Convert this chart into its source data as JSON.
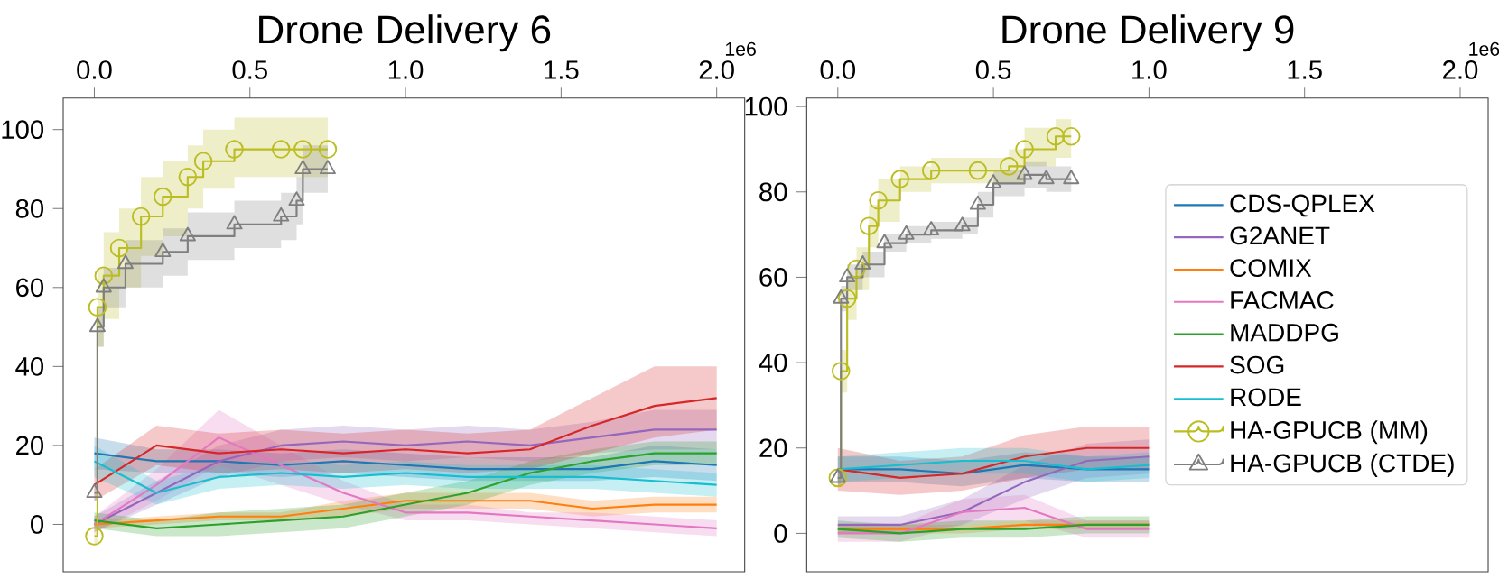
{
  "chart_data": [
    {
      "type": "line",
      "title": "Drone Delivery 6",
      "annotations": [
        "1e6"
      ],
      "xlim": [
        -0.1,
        2.09
      ],
      "ylim": [
        -12,
        108
      ],
      "xticks": [
        {
          "value": 0,
          "label": "0.0"
        },
        {
          "value": 0.5,
          "label": "0.5"
        },
        {
          "value": 1,
          "label": "1.0"
        },
        {
          "value": 1.5,
          "label": "1.5"
        },
        {
          "value": 2,
          "label": "2.0"
        }
      ],
      "yticks": [
        0,
        20,
        40,
        60,
        80,
        100
      ],
      "legend": false,
      "x": [
        0,
        0.2,
        0.4,
        0.6,
        0.8,
        1.0,
        1.2,
        1.4,
        1.6,
        1.8,
        2.0
      ],
      "series": [
        {
          "color": "#1f77b4",
          "marker": "none",
          "values": [
            18,
            16,
            16,
            15,
            16,
            15,
            14,
            14,
            14,
            16,
            15
          ],
          "lower": [
            14,
            13,
            13,
            12,
            13,
            12,
            11,
            11,
            11,
            12,
            11
          ],
          "upper": [
            22,
            19,
            19,
            18,
            19,
            18,
            17,
            17,
            17,
            20,
            19
          ]
        },
        {
          "color": "#9467bd",
          "marker": "none",
          "values": [
            0,
            8,
            16,
            20,
            21,
            20,
            21,
            20,
            22,
            24,
            24
          ],
          "lower": [
            -2,
            5,
            12,
            16,
            17,
            16,
            17,
            16,
            18,
            19,
            19
          ],
          "upper": [
            2,
            11,
            20,
            24,
            25,
            24,
            25,
            24,
            26,
            29,
            29
          ]
        },
        {
          "color": "#ff7f0e",
          "marker": "none",
          "values": [
            0,
            1,
            2,
            2,
            4,
            6,
            6,
            6,
            4,
            5,
            5
          ],
          "lower": [
            -1,
            0,
            1,
            1,
            2,
            4,
            4,
            4,
            2,
            3,
            3
          ],
          "upper": [
            1,
            2,
            3,
            3,
            6,
            8,
            8,
            8,
            6,
            7,
            7
          ]
        },
        {
          "color": "#e377c2",
          "marker": "none",
          "values": [
            0,
            10,
            22,
            15,
            8,
            3,
            3,
            2,
            1,
            0,
            -1
          ],
          "lower": [
            -2,
            6,
            15,
            10,
            5,
            1,
            1,
            0,
            -1,
            -2,
            -3
          ],
          "upper": [
            2,
            14,
            29,
            20,
            11,
            5,
            5,
            3,
            3,
            2,
            1
          ]
        },
        {
          "color": "#2ca02c",
          "marker": "none",
          "values": [
            1,
            -1,
            0,
            1,
            2,
            5,
            8,
            13,
            16,
            18,
            18
          ],
          "lower": [
            -1,
            -3,
            -3,
            -2,
            -1,
            2,
            5,
            10,
            13,
            15,
            15
          ],
          "upper": [
            3,
            1,
            3,
            4,
            5,
            8,
            11,
            16,
            19,
            21,
            21
          ]
        },
        {
          "color": "#d62728",
          "marker": "none",
          "values": [
            10,
            20,
            18,
            19,
            18,
            19,
            18,
            19,
            25,
            30,
            32
          ],
          "lower": [
            6,
            15,
            13,
            14,
            13,
            14,
            13,
            14,
            18,
            22,
            24
          ],
          "upper": [
            14,
            25,
            23,
            24,
            23,
            24,
            23,
            24,
            32,
            40,
            40
          ]
        },
        {
          "color": "#17becf",
          "marker": "none",
          "values": [
            16,
            8,
            12,
            13,
            12,
            13,
            12,
            12,
            12,
            11,
            10
          ],
          "lower": [
            12,
            5,
            9,
            10,
            9,
            10,
            9,
            9,
            9,
            8,
            7
          ],
          "upper": [
            20,
            11,
            15,
            16,
            15,
            16,
            15,
            15,
            15,
            14,
            13
          ]
        },
        {
          "color": "#bcbd22",
          "type": "step",
          "marker": "circle",
          "x": [
            0,
            0.01,
            0.03,
            0.08,
            0.15,
            0.22,
            0.3,
            0.35,
            0.45,
            0.6,
            0.67,
            0.75
          ],
          "values": [
            -3,
            55,
            63,
            70,
            78,
            83,
            88,
            92,
            95,
            95,
            95,
            95
          ],
          "lower": [
            -5,
            45,
            52,
            60,
            68,
            73,
            80,
            85,
            88,
            88,
            88,
            88
          ],
          "upper": [
            -1,
            65,
            74,
            80,
            88,
            92,
            96,
            100,
            103,
            103,
            103,
            103
          ]
        },
        {
          "color": "#7f7f7f",
          "type": "step",
          "marker": "triangle",
          "x": [
            0,
            0.01,
            0.03,
            0.1,
            0.22,
            0.3,
            0.45,
            0.6,
            0.65,
            0.67,
            0.75
          ],
          "values": [
            8,
            50,
            60,
            66,
            69,
            73,
            76,
            78,
            82,
            90,
            90
          ],
          "lower": [
            6,
            45,
            55,
            60,
            63,
            67,
            70,
            72,
            76,
            84,
            84
          ],
          "upper": [
            10,
            55,
            65,
            72,
            75,
            79,
            82,
            84,
            88,
            96,
            96
          ]
        }
      ]
    },
    {
      "type": "line",
      "title": "Drone Delivery 9",
      "annotations": [
        "1e6"
      ],
      "xlim": [
        -0.1,
        2.09
      ],
      "ylim": [
        -9,
        102
      ],
      "xticks": [
        {
          "value": 0,
          "label": "0.0"
        },
        {
          "value": 0.5,
          "label": "0.5"
        },
        {
          "value": 1,
          "label": "1.0"
        },
        {
          "value": 1.5,
          "label": "1.5"
        },
        {
          "value": 2,
          "label": "2.0"
        }
      ],
      "yticks": [
        0,
        20,
        40,
        60,
        80,
        100
      ],
      "legend": "right",
      "x": [
        0,
        0.2,
        0.4,
        0.6,
        0.8,
        1.0
      ],
      "series": [
        {
          "name": "CDS-QPLEX",
          "color": "#1f77b4",
          "marker": "none",
          "values": [
            15,
            15,
            14,
            16,
            15,
            15
          ],
          "lower": [
            12,
            12,
            11,
            13,
            12,
            12
          ],
          "upper": [
            18,
            18,
            17,
            19,
            18,
            18
          ]
        },
        {
          "name": "G2ANET",
          "color": "#9467bd",
          "marker": "none",
          "values": [
            2,
            2,
            5,
            12,
            17,
            18
          ],
          "lower": [
            0,
            0,
            2,
            8,
            13,
            14
          ],
          "upper": [
            4,
            4,
            8,
            16,
            21,
            22
          ]
        },
        {
          "name": "COMIX",
          "color": "#ff7f0e",
          "marker": "none",
          "values": [
            1,
            1,
            1,
            2,
            2,
            2
          ],
          "lower": [
            0,
            0,
            0,
            1,
            1,
            1
          ],
          "upper": [
            2,
            2,
            2,
            3,
            3,
            3
          ]
        },
        {
          "name": "FACMAC",
          "color": "#e377c2",
          "marker": "none",
          "values": [
            0,
            0,
            5,
            6,
            1,
            1
          ],
          "lower": [
            -2,
            -2,
            2,
            3,
            -1,
            -1
          ],
          "upper": [
            2,
            2,
            8,
            9,
            3,
            3
          ]
        },
        {
          "name": "MADDPG",
          "color": "#2ca02c",
          "marker": "none",
          "values": [
            1,
            0,
            1,
            1,
            2,
            2
          ],
          "lower": [
            -1,
            -2,
            -1,
            -1,
            0,
            0
          ],
          "upper": [
            3,
            2,
            3,
            3,
            4,
            4
          ]
        },
        {
          "name": "SOG",
          "color": "#d62728",
          "marker": "none",
          "values": [
            15,
            13,
            14,
            18,
            20,
            20
          ],
          "lower": [
            10,
            9,
            10,
            13,
            15,
            15
          ],
          "upper": [
            20,
            17,
            18,
            23,
            25,
            25
          ]
        },
        {
          "name": "RODE",
          "color": "#17becf",
          "marker": "none",
          "values": [
            15,
            16,
            17,
            17,
            15,
            16
          ],
          "lower": [
            12,
            13,
            14,
            14,
            12,
            13
          ],
          "upper": [
            18,
            19,
            20,
            20,
            18,
            19
          ]
        },
        {
          "name": "HA-GPUCB (MM)",
          "color": "#bcbd22",
          "type": "step",
          "marker": "circle",
          "x": [
            0,
            0.01,
            0.03,
            0.06,
            0.1,
            0.13,
            0.2,
            0.3,
            0.45,
            0.55,
            0.6,
            0.7,
            0.75
          ],
          "values": [
            13,
            38,
            55,
            62,
            72,
            78,
            83,
            85,
            85,
            86,
            90,
            93,
            93
          ],
          "lower": [
            11,
            33,
            50,
            57,
            67,
            73,
            80,
            82,
            82,
            82,
            86,
            88,
            88
          ],
          "upper": [
            15,
            43,
            60,
            67,
            77,
            83,
            86,
            88,
            88,
            90,
            95,
            97,
            97
          ]
        },
        {
          "name": "HA-GPUCB (CTDE)",
          "color": "#7f7f7f",
          "type": "step",
          "marker": "triangle",
          "x": [
            0,
            0.01,
            0.03,
            0.08,
            0.15,
            0.22,
            0.3,
            0.4,
            0.45,
            0.5,
            0.6,
            0.67,
            0.75
          ],
          "values": [
            13,
            55,
            60,
            63,
            68,
            70,
            71,
            72,
            77,
            82,
            84,
            83,
            83
          ],
          "lower": [
            11,
            52,
            57,
            60,
            66,
            68,
            69,
            70,
            74,
            79,
            81,
            80,
            80
          ],
          "upper": [
            15,
            58,
            63,
            66,
            70,
            72,
            73,
            74,
            80,
            85,
            87,
            86,
            86
          ]
        }
      ]
    }
  ]
}
